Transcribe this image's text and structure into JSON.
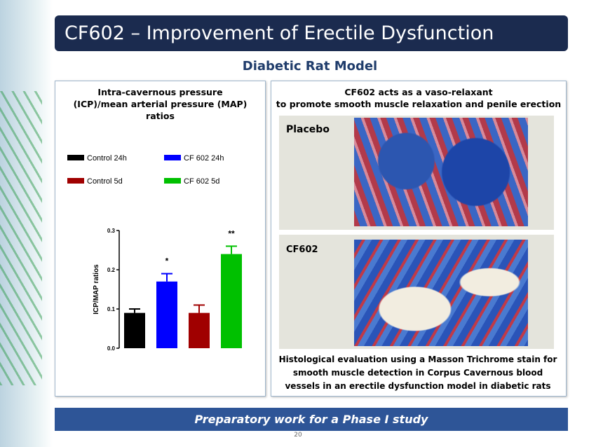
{
  "header": {
    "title": "CF602 – Improvement of Erectile Dysfunction",
    "subtitle": "Diabetic Rat Model"
  },
  "left_panel": {
    "heading": "Intra-cavernous pressure (ICP)/mean arterial pressure (MAP) ratios"
  },
  "right_panel": {
    "heading": [
      "CF602 acts as a vaso-relaxant",
      "to promote smooth muscle relaxation and penile erection"
    ],
    "images": [
      {
        "label": "Placebo"
      },
      {
        "label": "CF602"
      }
    ],
    "caption": "Histological evaluation using a Masson Trichrome stain for smooth muscle detection in Corpus Cavernous blood vessels in an erectile dysfunction model in diabetic rats"
  },
  "footer": {
    "banner": "Preparatory work for a Phase I study",
    "page_number": "20"
  },
  "chart_data": {
    "type": "bar",
    "y_label": "ICP/MAP ratios",
    "categories": [
      null
    ],
    "series": [
      {
        "name": "Control 24h",
        "color": "#000000",
        "values": [
          0.09
        ],
        "errors": [
          0.01
        ]
      },
      {
        "name": "CF 602  24h",
        "color": "#0000ff",
        "values": [
          0.17
        ],
        "errors": [
          0.02
        ],
        "annotation": "*"
      },
      {
        "name": "Control 5d",
        "color": "#a00000",
        "values": [
          0.09
        ],
        "errors": [
          0.02
        ]
      },
      {
        "name": "CF 602  5d",
        "color": "#00c000",
        "values": [
          0.24
        ],
        "errors": [
          0.02
        ],
        "annotation": "**"
      }
    ],
    "ylim": [
      0,
      0.3
    ],
    "yticks": [
      {
        "value": 0,
        "label": "0.0"
      },
      0.1,
      0.2,
      0.3
    ]
  }
}
